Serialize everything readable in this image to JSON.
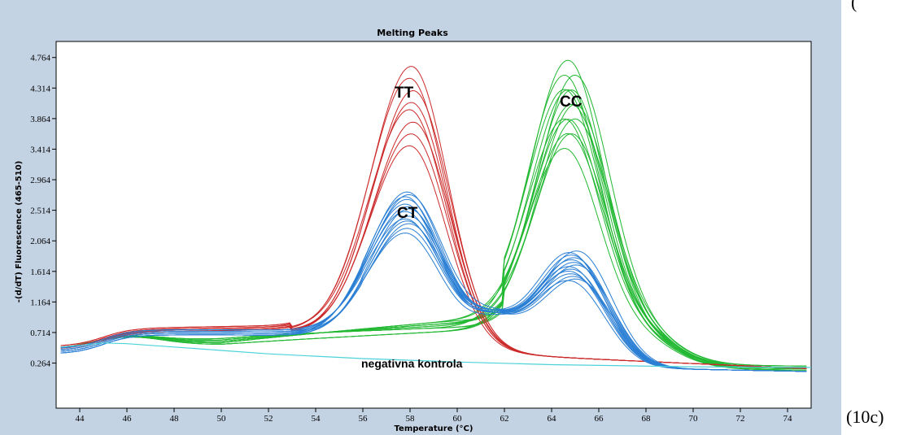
{
  "caption": "(10c)",
  "corner_fragment": "(",
  "colors": {
    "TT": "#cc2a2a",
    "CT": "#2a7fd4",
    "CC": "#22b832",
    "negative": "#4dd2d9",
    "frame": "#c4d3e4"
  },
  "chart_data": {
    "type": "line",
    "title": "Melting Peaks",
    "xlabel": "Temperature (°C)",
    "ylabel": "-(d/dT) Fluorescence (465-510)",
    "xlim": [
      43,
      75
    ],
    "ylim": [
      -0.4,
      5.0
    ],
    "xticks": [
      "44",
      "46",
      "48",
      "50",
      "52",
      "54",
      "56",
      "58",
      "60",
      "62",
      "64",
      "66",
      "68",
      "70",
      "72",
      "74"
    ],
    "yticks": [
      "0.264",
      "0.714",
      "1.164",
      "1.614",
      "2.064",
      "2.514",
      "2.964",
      "3.414",
      "3.864",
      "4.314",
      "4.764"
    ],
    "series": [
      {
        "name": "TT",
        "peak_x": 58.1,
        "peak_min": 3.6,
        "peak_max": 4.72,
        "curves": 8
      },
      {
        "name": "CT",
        "peak_x": 57.9,
        "peak_min": 2.2,
        "peak_max": 2.78,
        "peak2_x": 65.1,
        "peak2_min": 1.77,
        "peak2_max": 2.22,
        "curves": 14
      },
      {
        "name": "CC",
        "peak_x": 64.8,
        "peak_min": 3.4,
        "peak_max": 4.52,
        "curves": 14
      },
      {
        "name": "negativna kontrola",
        "x": [
          43.2,
          45,
          46,
          48,
          50,
          52,
          56,
          60,
          64,
          70,
          75
        ],
        "y": [
          0.5,
          0.56,
          0.55,
          0.5,
          0.45,
          0.4,
          0.33,
          0.28,
          0.24,
          0.21,
          0.2
        ]
      }
    ],
    "annotations": [
      "TT",
      "CT",
      "CC",
      "negativna kontrola"
    ]
  }
}
